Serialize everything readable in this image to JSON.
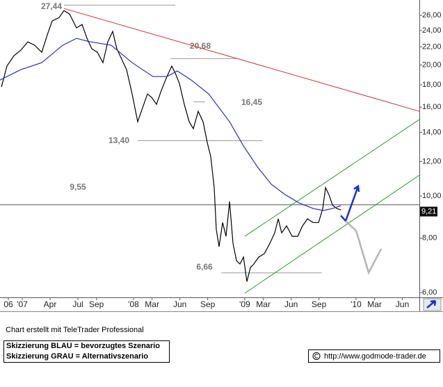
{
  "chart_data": {
    "type": "line",
    "log_scale": true,
    "xlim": [
      -2.4,
      42.83
    ],
    "ylim": [
      5.85,
      28.2
    ],
    "xticks": [
      {
        "value": -1.5,
        "label": "06"
      },
      {
        "value": 0,
        "label": "'07"
      },
      {
        "value": 3,
        "label": "Apr"
      },
      {
        "value": 6,
        "label": "Jul"
      },
      {
        "value": 8,
        "label": "Sep"
      },
      {
        "value": 12,
        "label": "'08"
      },
      {
        "value": 14,
        "label": "Mar"
      },
      {
        "value": 17,
        "label": "Jun"
      },
      {
        "value": 20,
        "label": "Sep"
      },
      {
        "value": 24,
        "label": "'09"
      },
      {
        "value": 26,
        "label": "Mar"
      },
      {
        "value": 29,
        "label": "Jun"
      },
      {
        "value": 32,
        "label": "Sep"
      },
      {
        "value": 36,
        "label": "'10"
      },
      {
        "value": 38,
        "label": "Mar"
      },
      {
        "value": 41,
        "label": "Jun"
      }
    ],
    "yticks": [
      {
        "value": 6,
        "label": "6,00"
      },
      {
        "value": 8,
        "label": "8,00"
      },
      {
        "value": 10,
        "label": "10,00"
      },
      {
        "value": 12,
        "label": "12,00"
      },
      {
        "value": 14,
        "label": "14,00"
      },
      {
        "value": 16,
        "label": "16,00"
      },
      {
        "value": 18,
        "label": "18,00"
      },
      {
        "value": 20,
        "label": "20,00"
      },
      {
        "value": 22,
        "label": "22,00"
      },
      {
        "value": 24,
        "label": "24,00"
      },
      {
        "value": 26,
        "label": "26,00"
      }
    ],
    "series": [
      {
        "color": "#000000",
        "x": [
          -2.25,
          -1.65,
          -0.9,
          -0.15,
          0.6,
          1.35,
          2.1,
          2.7,
          3.23,
          3.98,
          4.5,
          5.1,
          5.85,
          6.45,
          6.98,
          7.5,
          8.1,
          8.7,
          9.23,
          9.75,
          10.2,
          10.73,
          11.25,
          11.85,
          12.45,
          12.98,
          13.5,
          13.95,
          14.48,
          15.0,
          15.6,
          16.13,
          16.5,
          16.95,
          17.48,
          18.0,
          18.45,
          18.98,
          19.5,
          19.95,
          20.33,
          20.7,
          20.93,
          21.23,
          21.61,
          21.98,
          22.36,
          22.73,
          23.11,
          23.48,
          23.86,
          24.23,
          24.61,
          24.98,
          25.51,
          26.11,
          26.71,
          27.23,
          27.61,
          27.98,
          28.51,
          29.11,
          29.71,
          30.23,
          30.76,
          31.36,
          31.96,
          32.41,
          32.71,
          33.08,
          33.46,
          33.91,
          34.36
        ],
        "values": [
          17.8,
          19.88,
          21.0,
          21.63,
          22.6,
          22.19,
          21.39,
          23.45,
          25.24,
          25.71,
          26.67,
          26.18,
          24.33,
          24.78,
          23.02,
          21.79,
          21.39,
          20.24,
          22.6,
          23.88,
          21.79,
          20.62,
          19.51,
          17.16,
          14.81,
          15.94,
          17.16,
          16.85,
          16.24,
          17.48,
          18.81,
          19.88,
          19.16,
          18.13,
          16.24,
          14.81,
          14.28,
          15.65,
          14.81,
          13.27,
          12.33,
          10.45,
          8.38,
          7.65,
          8.69,
          8.08,
          9.71,
          7.79,
          7.1,
          6.98,
          7.24,
          6.36,
          6.85,
          6.98,
          7.24,
          7.37,
          7.79,
          8.23,
          8.86,
          8.23,
          8.54,
          8.08,
          8.08,
          8.54,
          8.86,
          8.69,
          8.69,
          9.36,
          10.45,
          10.07,
          9.53,
          9.36,
          9.29
        ]
      },
      {
        "color": "#2a2ac8",
        "x": [
          -2.4,
          -0.15,
          2.1,
          4.35,
          5.85,
          7.35,
          9.6,
          11.85,
          14.1,
          15.6,
          16.73,
          18.23,
          20.1,
          22.36,
          23.86,
          25.36,
          26.86,
          28.36,
          29.86,
          31.36,
          32.48,
          33.46,
          34.36
        ],
        "values": [
          18.47,
          19.51,
          20.24,
          22.19,
          23.02,
          22.6,
          22.19,
          20.24,
          18.81,
          18.81,
          19.37,
          18.47,
          17.16,
          14.81,
          13.03,
          11.67,
          10.64,
          10.07,
          9.64,
          9.36,
          9.26,
          9.36,
          9.5
        ]
      }
    ],
    "trendlines": [
      {
        "color": "#d03030",
        "x": [
          4.5,
          42.83
        ],
        "values": [
          26.96,
          15.65
        ]
      },
      {
        "color": "#22a022",
        "x": [
          24.0,
          42.83
        ],
        "values": [
          8.08,
          14.98
        ]
      },
      {
        "color": "#22a022",
        "x": [
          24.0,
          42.83
        ],
        "values": [
          5.98,
          11.16
        ]
      }
    ],
    "levels": [
      {
        "value": 27.44,
        "label": "27,44",
        "x": [
          4.5,
          16.5
        ]
      },
      {
        "value": 20.68,
        "label": "20,68",
        "x": [
          16.0,
          23.1
        ]
      },
      {
        "value": 16.45,
        "label": "16,45",
        "x": [
          18.5,
          19.7
        ]
      },
      {
        "value": 13.4,
        "label": "13,40",
        "x": [
          12.45,
          25.9
        ]
      },
      {
        "value": 9.55,
        "label": "9,55",
        "x": [
          -2.4,
          42.83
        ]
      },
      {
        "value": 6.66,
        "label": "6,66",
        "x": [
          21.5,
          32.3
        ]
      }
    ],
    "scenarios": [
      {
        "color": "#1a2fd0",
        "x": [
          34.36,
          34.88,
          36.23
        ],
        "values": [
          9.02,
          8.76,
          10.53
        ]
      },
      {
        "color": "#b4b4b4",
        "x": [
          34.88,
          36.01,
          37.36,
          38.71
        ],
        "values": [
          8.76,
          8.32,
          6.67,
          7.56
        ]
      }
    ],
    "last_price": {
      "value": 9.21,
      "label": "9,21"
    }
  },
  "footer": {
    "credit": "Chart erstellt mit TeleTrader Professional",
    "legend_blue": "Skizzierung BLAU = bevorzugtes Szenario",
    "legend_gray": "Skizzierung GRAU = Alternativszenario",
    "source": "http://www.godmode-trader.de"
  }
}
